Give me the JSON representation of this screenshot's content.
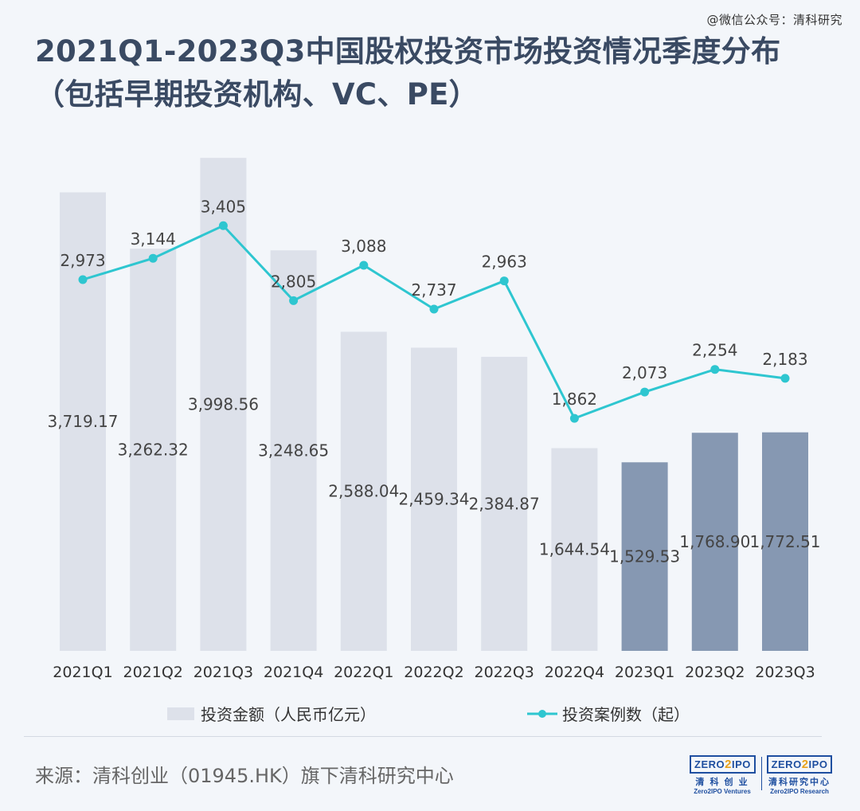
{
  "watermark": "@微信公众号：清科研究",
  "title_line1": "2021Q1-2023Q3中国股权投资市场投资情况季度分布",
  "title_line2": "（包括早期投资机构、VC、PE）",
  "source": "来源：清科创业（01945.HK）旗下清科研究中心",
  "logos": [
    {
      "box": "ZERO",
      "mark": "2",
      "box_suffix": "IPO",
      "cn": "清 科 创 业",
      "en": "Zero2IPO Ventures"
    },
    {
      "box": "ZERO",
      "mark": "2",
      "box_suffix": "IPO",
      "cn": "清科研究中心",
      "en": "Zero2IPO Research"
    }
  ],
  "chart_data": {
    "type": "bar",
    "categories": [
      "2021Q1",
      "2021Q2",
      "2021Q3",
      "2021Q4",
      "2022Q1",
      "2022Q2",
      "2022Q3",
      "2022Q4",
      "2023Q1",
      "2023Q2",
      "2023Q3"
    ],
    "series": [
      {
        "name": "投资金额（人民币亿元）",
        "type": "bar",
        "values": [
          3719.17,
          3262.32,
          3998.56,
          3248.65,
          2588.04,
          2459.34,
          2384.87,
          1644.54,
          1529.53,
          1768.9,
          1772.51
        ],
        "labels": [
          "3,719.17",
          "3,262.32",
          "3,998.56",
          "3,248.65",
          "2,588.04",
          "2,459.34",
          "2,384.87",
          "1,644.54",
          "1,529.53",
          "1,768.90",
          "1,772.51"
        ],
        "colors": [
          "#dde1ea",
          "#dde1ea",
          "#dde1ea",
          "#dde1ea",
          "#dde1ea",
          "#dde1ea",
          "#dde1ea",
          "#dde1ea",
          "#8698b2",
          "#8698b2",
          "#8698b2"
        ]
      },
      {
        "name": "投资案例数（起）",
        "type": "line",
        "values": [
          2973,
          3144,
          3405,
          2805,
          3088,
          2737,
          2963,
          1862,
          2073,
          2254,
          2183
        ],
        "labels": [
          "2,973",
          "3,144",
          "3,405",
          "2,805",
          "3,088",
          "2,737",
          "2,963",
          "1,862",
          "2,073",
          "2,254",
          "2,183"
        ],
        "color": "#2ec6d0"
      }
    ],
    "title": "",
    "xlabel": "",
    "ylabel": "",
    "ylim_bar": [
      0,
      4200
    ],
    "ylim_line": [
      0,
      4300
    ],
    "legend": "bottom",
    "grid": false
  }
}
